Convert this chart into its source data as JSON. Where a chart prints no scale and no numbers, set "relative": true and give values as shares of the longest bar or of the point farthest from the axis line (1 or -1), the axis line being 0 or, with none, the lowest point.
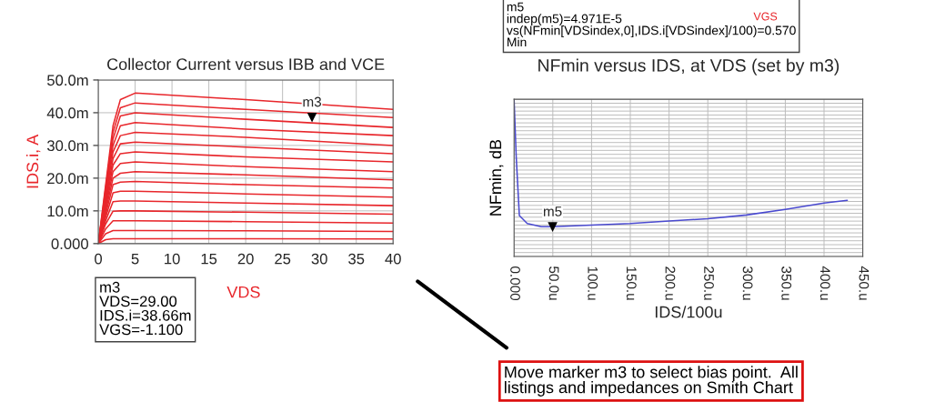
{
  "chart_data": [
    {
      "type": "line",
      "title": "Collector Current versus IBB and VCE",
      "xlabel": "VDS",
      "ylabel": "IDS.i, A",
      "x": [
        0,
        1,
        2,
        3,
        5,
        20,
        40
      ],
      "xlim": [
        0,
        40
      ],
      "xticks": [
        0,
        5,
        10,
        15,
        20,
        25,
        30,
        35,
        40
      ],
      "ylim": [
        0,
        50
      ],
      "yticks": [
        {
          "value": 0,
          "label": "0.000"
        },
        {
          "value": 10,
          "label": "10.0m"
        },
        {
          "value": 20,
          "label": "20.0m"
        },
        {
          "value": 30,
          "label": "30.0m"
        },
        {
          "value": 40,
          "label": "40.0m"
        },
        {
          "value": 50,
          "label": "50.0m"
        }
      ],
      "grid": true,
      "marker": "none",
      "line_style": "solid",
      "series": [
        {
          "color": "#e8262b",
          "values": [
            0,
            18,
            36,
            44,
            46,
            44,
            41
          ]
        },
        {
          "color": "#e8262b",
          "values": [
            0,
            17,
            34,
            41.5,
            43,
            41,
            38.5
          ]
        },
        {
          "color": "#e8262b",
          "values": [
            0,
            16,
            32,
            39,
            40,
            38,
            35.5
          ]
        },
        {
          "color": "#e8262b",
          "values": [
            0,
            15,
            30,
            36,
            37,
            35,
            33
          ]
        },
        {
          "color": "#e8262b",
          "values": [
            0,
            14,
            28,
            33,
            34,
            32.5,
            30
          ]
        },
        {
          "color": "#e8262b",
          "values": [
            0,
            13,
            26,
            30.5,
            31,
            29.5,
            27.5
          ]
        },
        {
          "color": "#e8262b",
          "values": [
            0,
            12,
            24,
            27.5,
            28,
            26.5,
            25
          ]
        },
        {
          "color": "#e8262b",
          "values": [
            0,
            11,
            22,
            24.5,
            25,
            23.5,
            22
          ]
        },
        {
          "color": "#e8262b",
          "values": [
            0,
            10,
            20,
            21.5,
            22,
            21,
            19.5
          ]
        },
        {
          "color": "#e8262b",
          "values": [
            0,
            9,
            18,
            18.8,
            19,
            18,
            17
          ]
        },
        {
          "color": "#e8262b",
          "values": [
            0,
            8,
            15.5,
            16,
            16,
            15.2,
            14.2
          ]
        },
        {
          "color": "#e8262b",
          "values": [
            0,
            7,
            12.8,
            13,
            13,
            12.4,
            11.6
          ]
        },
        {
          "color": "#e8262b",
          "values": [
            0,
            6,
            9.9,
            10,
            10,
            9.6,
            9
          ]
        },
        {
          "color": "#e8262b",
          "values": [
            0,
            4.5,
            7,
            7,
            7,
            6.7,
            6.3
          ]
        },
        {
          "color": "#e8262b",
          "values": [
            0,
            3,
            4,
            4,
            4,
            3.9,
            3.7
          ]
        },
        {
          "color": "#e8262b",
          "values": [
            0,
            1.2,
            1.5,
            1.5,
            1.5,
            1.5,
            1.4
          ]
        }
      ],
      "annotations": [
        {
          "text": "m3",
          "x": 29,
          "y": 38.66
        },
        "m3\nVDS=29.00\nIDS.i=38.66m\nVGS=-1.100"
      ]
    },
    {
      "type": "line",
      "title": "NFmin versus IDS, at VDS (set by m3)",
      "xlabel": "IDS/100u",
      "ylabel": "NFmin, dB",
      "relative": true,
      "xlim": [
        0,
        450
      ],
      "xticks": [
        {
          "value": 0,
          "label": "0.000"
        },
        {
          "value": 50,
          "label": "50.0u"
        },
        {
          "value": 100,
          "label": "100.u"
        },
        {
          "value": 150,
          "label": "150.u"
        },
        {
          "value": 200,
          "label": "200.u"
        },
        {
          "value": 250,
          "label": "250.u"
        },
        {
          "value": 300,
          "label": "300.u"
        },
        {
          "value": 350,
          "label": "350.u"
        },
        {
          "value": 400,
          "label": "400.u"
        },
        {
          "value": 450,
          "label": "450.u"
        }
      ],
      "grid": true,
      "marker": "none",
      "line_style": "solid",
      "series": [
        {
          "color": "#4a4ad0",
          "x": [
            0,
            2.8,
            6.8,
            17,
            35,
            50,
            100,
            150,
            200,
            250,
            300,
            350,
            400,
            430
          ],
          "values": [
            1.0,
            0.63,
            0.26,
            0.21,
            0.19,
            0.19,
            0.2,
            0.21,
            0.226,
            0.24,
            0.264,
            0.3,
            0.34,
            0.357
          ]
        }
      ],
      "annotations": [
        {
          "text": "m5",
          "x": 49.71,
          "y": 0.19
        },
        "m5\nindep(m5)=4.971E-5\nvs(NFmin[VDSindex,0],IDS.i[VDSindex]/100)=0.570\nMin",
        "VGS",
        "Move marker m3 to select bias point.  All\nlistings and impedances on Smith Chart"
      ]
    }
  ]
}
